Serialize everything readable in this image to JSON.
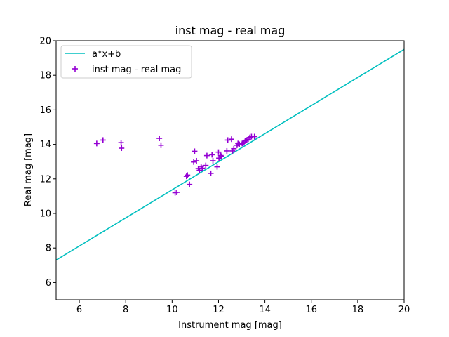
{
  "chart_data": {
    "type": "scatter",
    "title": "inst mag - real mag",
    "xlabel": "Instrument mag [mag]",
    "ylabel": "Real mag [mag]",
    "xlim": [
      5,
      20
    ],
    "ylim": [
      5,
      20
    ],
    "xticks": [
      6,
      8,
      10,
      12,
      14,
      16,
      18,
      20
    ],
    "yticks": [
      6,
      8,
      10,
      12,
      14,
      16,
      18,
      20
    ],
    "grid": false,
    "legend_position": "top-left",
    "series": [
      {
        "name": "a*x+b",
        "kind": "line",
        "color": "#00bfbf",
        "x": [
          5,
          20
        ],
        "y": [
          7.3,
          19.5
        ]
      },
      {
        "name": "inst mag - real mag",
        "kind": "scatter",
        "marker": "+",
        "color": "#9400d3",
        "x": [
          6.75,
          7.02,
          7.8,
          7.82,
          9.45,
          9.52,
          10.13,
          10.2,
          10.62,
          10.66,
          10.75,
          10.93,
          10.97,
          11.05,
          11.13,
          11.18,
          11.25,
          11.3,
          11.45,
          11.5,
          11.67,
          11.72,
          11.76,
          11.94,
          12.0,
          12.02,
          12.1,
          12.13,
          12.36,
          12.4,
          12.56,
          12.6,
          12.66,
          12.8,
          12.84,
          12.9,
          13.02,
          13.1,
          13.15,
          13.22,
          13.28,
          13.35,
          13.42,
          13.55
        ],
        "y": [
          14.05,
          14.25,
          14.1,
          13.78,
          14.35,
          13.95,
          11.2,
          11.22,
          12.15,
          12.22,
          11.68,
          12.98,
          13.6,
          13.05,
          12.6,
          12.5,
          12.72,
          12.62,
          12.78,
          13.35,
          12.32,
          13.4,
          13.05,
          12.7,
          13.55,
          13.2,
          13.35,
          13.3,
          13.62,
          14.25,
          14.3,
          13.62,
          13.75,
          13.95,
          14.05,
          14.0,
          14.05,
          14.1,
          14.2,
          14.25,
          14.3,
          14.4,
          14.45,
          14.45
        ]
      }
    ]
  }
}
